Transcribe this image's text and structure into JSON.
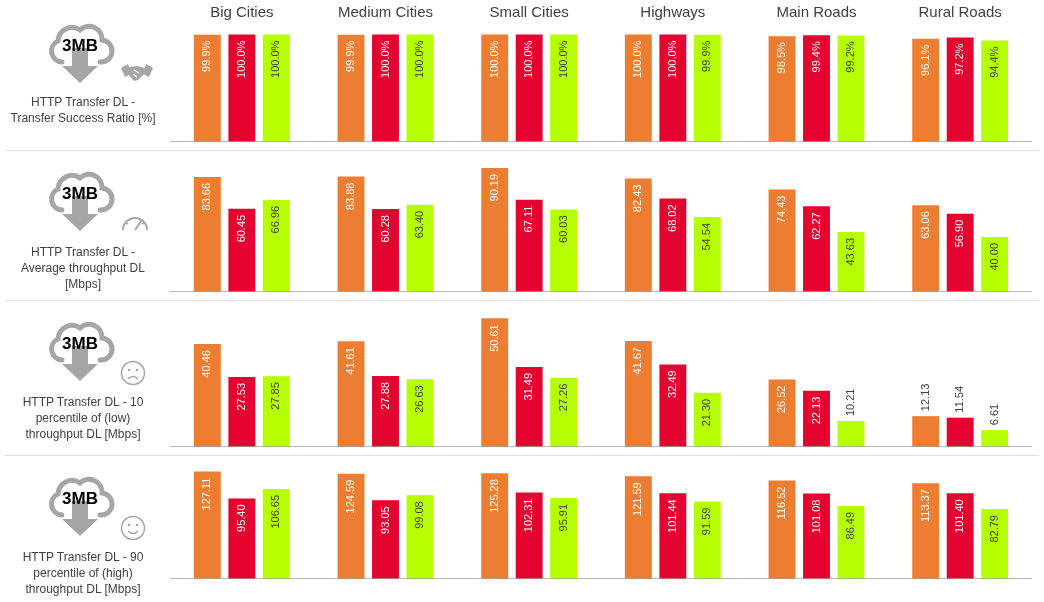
{
  "chart_data": [
    {
      "type": "bar",
      "title": "HTTP Transfer DL - Transfer Success Ratio [%]",
      "annotations": [
        "3MB"
      ],
      "categories": [
        "Big Cities",
        "Medium Cities",
        "Small Cities",
        "Highways",
        "Main Roads",
        "Rural Roads"
      ],
      "tick_labels": "x",
      "series": [
        {
          "color": "#ed7d31",
          "values": [
            99.9,
            99.9,
            100.0,
            100.0,
            98.5,
            96.1
          ],
          "value_labels": [
            "99.9%",
            "99.9%",
            "100.0%",
            "100.0%",
            "98.5%",
            "96.1%"
          ]
        },
        {
          "color": "#e4032e",
          "values": [
            100.0,
            100.0,
            100.0,
            100.0,
            99.4,
            97.2
          ],
          "value_labels": [
            "100.0%",
            "100.0%",
            "100.0%",
            "100.0%",
            "99.4%",
            "97.2%"
          ]
        },
        {
          "color": "#b5ff00",
          "values": [
            100.0,
            100.0,
            100.0,
            99.9,
            99.2,
            94.4
          ],
          "value_labels": [
            "100.0%",
            "100.0%",
            "100.0%",
            "99.9%",
            "99.2%",
            "94.4%"
          ]
        }
      ]
    },
    {
      "type": "bar",
      "title": "HTTP Transfer DL - Average throughput DL [Mbps]",
      "annotations": [
        "3MB"
      ],
      "categories": [
        null,
        null,
        null,
        null,
        null,
        null
      ],
      "tick_labels": false,
      "series": [
        {
          "color": "#ed7d31",
          "values": [
            83.66,
            83.88,
            90.19,
            82.43,
            74.43,
            63.06
          ],
          "value_labels": [
            "83.66",
            "83.88",
            "90.19",
            "82.43",
            "74.43",
            "63.06"
          ]
        },
        {
          "color": "#e4032e",
          "values": [
            60.45,
            60.28,
            67.11,
            68.02,
            62.27,
            56.9
          ],
          "value_labels": [
            "60.45",
            "60.28",
            "67.11",
            "68.02",
            "62.27",
            "56.90"
          ]
        },
        {
          "color": "#b5ff00",
          "values": [
            66.96,
            63.4,
            60.03,
            54.54,
            43.63,
            40.0
          ],
          "value_labels": [
            "66.96",
            "63.40",
            "60.03",
            "54.54",
            "43.63",
            "40.00"
          ]
        }
      ]
    },
    {
      "type": "bar",
      "title": "HTTP Transfer DL - 10 percentile of (low) throughput DL [Mbps]",
      "annotations": [
        "3MB"
      ],
      "categories": [
        null,
        null,
        null,
        null,
        null,
        null
      ],
      "tick_labels": false,
      "series": [
        {
          "color": "#ed7d31",
          "values": [
            40.46,
            41.61,
            50.61,
            41.67,
            26.52,
            12.13
          ],
          "value_labels": [
            "40.46",
            "41.61",
            "50.61",
            "41.67",
            "26.52",
            "12.13"
          ]
        },
        {
          "color": "#e4032e",
          "values": [
            27.53,
            27.88,
            31.49,
            32.49,
            22.13,
            11.54
          ],
          "value_labels": [
            "27.53",
            "27.88",
            "31.49",
            "32.49",
            "22.13",
            "11.54"
          ]
        },
        {
          "color": "#b5ff00",
          "values": [
            27.85,
            26.63,
            27.26,
            21.3,
            10.21,
            6.61
          ],
          "value_labels": [
            "27.85",
            "26.63",
            "27.26",
            "21.30",
            "10.21",
            "6.61"
          ]
        }
      ]
    },
    {
      "type": "bar",
      "title": "HTTP Transfer DL - 90 percentile of (high) throughput DL [Mbps]",
      "annotations": [
        "3MB"
      ],
      "categories": [
        null,
        null,
        null,
        null,
        null,
        null
      ],
      "tick_labels": false,
      "series": [
        {
          "color": "#ed7d31",
          "values": [
            127.11,
            124.59,
            125.28,
            121.59,
            116.52,
            113.37
          ],
          "value_labels": [
            "127.11",
            "124.59",
            "125.28",
            "121.59",
            "116.52",
            "113.37"
          ]
        },
        {
          "color": "#e4032e",
          "values": [
            95.4,
            93.05,
            102.31,
            101.44,
            101.08,
            101.4
          ],
          "value_labels": [
            "95.40",
            "93.05",
            "102.31",
            "101.44",
            "101.08",
            "101.40"
          ]
        },
        {
          "color": "#b5ff00",
          "values": [
            106.65,
            99.08,
            95.91,
            91.59,
            86.49,
            82.79
          ],
          "value_labels": [
            "106.65",
            "99.08",
            "95.91",
            "91.59",
            "86.49",
            "82.79"
          ]
        }
      ]
    }
  ]
}
